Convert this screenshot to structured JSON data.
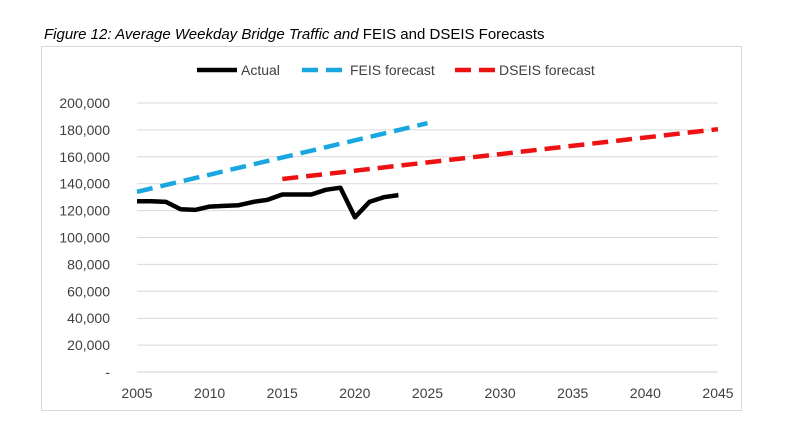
{
  "caption": {
    "italic_part": "Figure 12: Average Weekday Bridge Traffic and",
    "regular_part": " FEIS and DSEIS Forecasts"
  },
  "chart_data": {
    "type": "line",
    "title": "",
    "xlabel": "",
    "ylabel": "",
    "xlim": [
      2005,
      2045
    ],
    "ylim": [
      0,
      200000
    ],
    "x_ticks": [
      2005,
      2010,
      2015,
      2020,
      2025,
      2030,
      2035,
      2040,
      2045
    ],
    "x_tick_labels": [
      "2005",
      "2010",
      "2015",
      "2020",
      "2025",
      "2030",
      "2035",
      "2040",
      "2045"
    ],
    "y_ticks": [
      0,
      20000,
      40000,
      60000,
      80000,
      100000,
      120000,
      140000,
      160000,
      180000,
      200000
    ],
    "y_tick_labels": [
      "-",
      "20,000",
      "40,000",
      "60,000",
      "80,000",
      "100,000",
      "120,000",
      "140,000",
      "160,000",
      "180,000",
      "200,000"
    ],
    "grid": "horizontal",
    "legend_position": "top",
    "series": [
      {
        "name": "Actual",
        "style": "solid",
        "color": "#000000",
        "x": [
          2005,
          2006,
          2007,
          2008,
          2009,
          2010,
          2011,
          2012,
          2013,
          2014,
          2015,
          2016,
          2017,
          2018,
          2019,
          2020,
          2021,
          2022,
          2023
        ],
        "y": [
          127000,
          127000,
          126500,
          121000,
          120500,
          123000,
          123500,
          124000,
          126500,
          128000,
          132000,
          132000,
          132000,
          135500,
          137000,
          115000,
          126500,
          130000,
          131500
        ]
      },
      {
        "name": "FEIS forecast",
        "style": "dashed",
        "color": "#1aa7e0",
        "x": [
          2005,
          2025
        ],
        "y": [
          134000,
          185000
        ]
      },
      {
        "name": "DSEIS forecast",
        "style": "dashed",
        "color": "#ee1111",
        "x": [
          2015,
          2045
        ],
        "y": [
          143500,
          180500
        ]
      }
    ]
  }
}
